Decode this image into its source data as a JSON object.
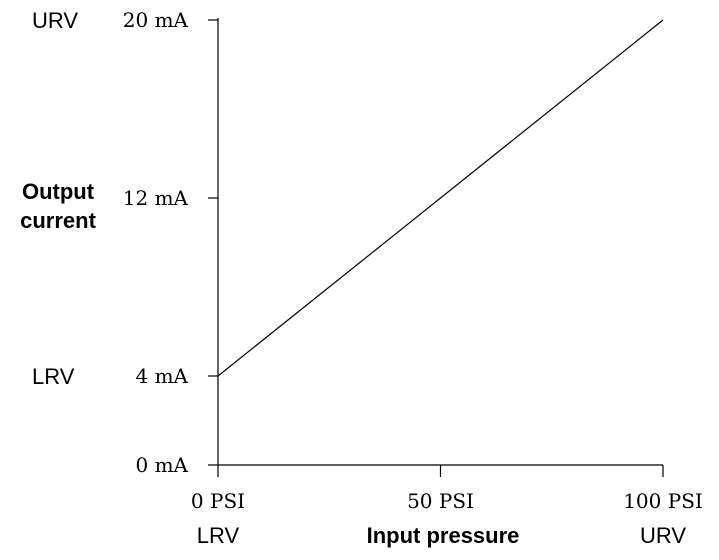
{
  "chart_data": {
    "type": "line",
    "title": "",
    "xlabel": "Input pressure",
    "ylabel_lines": [
      "Output",
      "current"
    ],
    "x_unit": "PSI",
    "y_unit": "mA",
    "xlim": [
      0,
      100
    ],
    "ylim": [
      0,
      20
    ],
    "grid": false,
    "x_ticks": [
      {
        "value": 0,
        "label": "0 PSI",
        "range_label": "LRV"
      },
      {
        "value": 50,
        "label": "50 PSI",
        "range_label": ""
      },
      {
        "value": 100,
        "label": "100 PSI",
        "range_label": "URV"
      }
    ],
    "y_ticks": [
      {
        "value": 0,
        "label": "0 mA",
        "range_label": ""
      },
      {
        "value": 4,
        "label": "4 mA",
        "range_label": "LRV"
      },
      {
        "value": 12,
        "label": "12 mA",
        "range_label": ""
      },
      {
        "value": 20,
        "label": "20 mA",
        "range_label": "URV"
      }
    ],
    "series": [
      {
        "x": [
          0,
          100
        ],
        "y": [
          4,
          20
        ],
        "color": "#000000"
      }
    ]
  }
}
